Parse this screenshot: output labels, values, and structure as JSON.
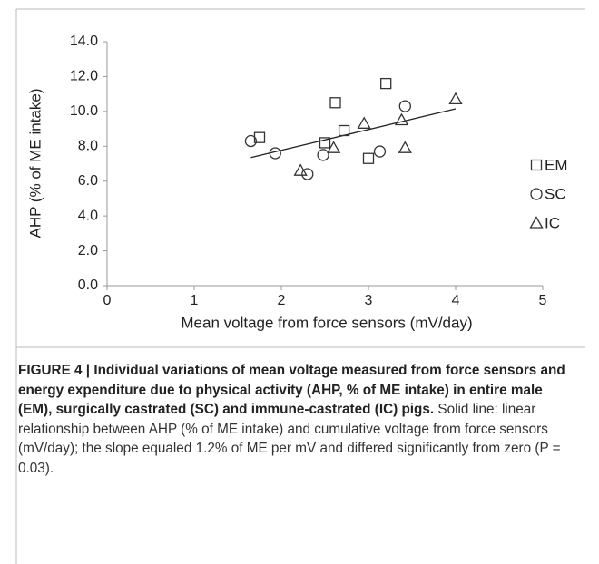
{
  "chart_data": {
    "type": "scatter",
    "xlabel": "Mean voltage from force sensors (mV/day)",
    "ylabel": "AHP (% of ME intake)",
    "xlim": [
      0,
      5
    ],
    "xticks": [
      0,
      1,
      2,
      3,
      4,
      5
    ],
    "ylim": [
      0,
      14
    ],
    "yticks": [
      {
        "value": 0,
        "label": "0.0"
      },
      {
        "value": 2,
        "label": "2.0"
      },
      {
        "value": 4,
        "label": "4.0"
      },
      {
        "value": 6,
        "label": "6.0"
      },
      {
        "value": 8,
        "label": "8.0"
      },
      {
        "value": 10,
        "label": "10.0"
      },
      {
        "value": 12,
        "label": "12.0"
      },
      {
        "value": 14,
        "label": "14.0"
      }
    ],
    "legend": "right",
    "series": [
      {
        "name": "EM",
        "marker": "square",
        "color": "#333333",
        "x": [
          1.75,
          2.5,
          2.62,
          2.72,
          3.0,
          3.2
        ],
        "values": [
          8.5,
          8.2,
          10.5,
          8.9,
          7.3,
          11.6
        ]
      },
      {
        "name": "SC",
        "marker": "circle",
        "color": "#333333",
        "x": [
          1.65,
          1.93,
          2.3,
          2.48,
          3.13,
          3.42
        ],
        "values": [
          8.3,
          7.6,
          6.4,
          7.5,
          7.7,
          10.3
        ]
      },
      {
        "name": "IC",
        "marker": "triangle",
        "color": "#333333",
        "x": [
          2.22,
          2.6,
          2.95,
          3.38,
          3.42,
          4.0
        ],
        "values": [
          6.6,
          7.9,
          9.3,
          9.5,
          7.9,
          10.7
        ]
      }
    ],
    "trendline": {
      "x": [
        1.65,
        4.0
      ],
      "values": [
        7.35,
        10.15
      ],
      "color": "#222222"
    }
  },
  "caption": {
    "bold": "FIGURE 4 | Individual variations of mean voltage measured from force sensors and energy expenditure due to physical activity (AHP, % of ME intake) in entire male (EM), surgically castrated (SC) and immune-castrated (IC) pigs.",
    "text": " Solid line: linear relationship between AHP (% of ME intake) and cumulative voltage from force sensors (mV/day); the slope equaled 1.2% of ME per mV and differed significantly from zero (P = 0.03)."
  }
}
